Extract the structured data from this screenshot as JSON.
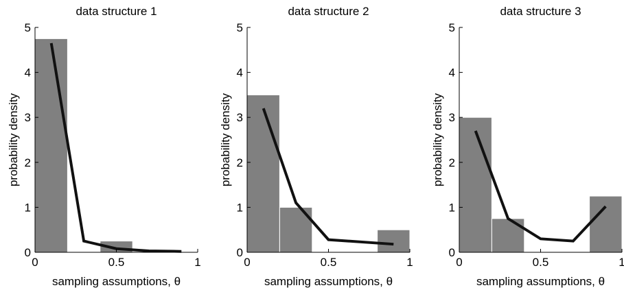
{
  "chart_data": [
    {
      "type": "bar",
      "title": "data structure 1",
      "xlabel": "sampling assumptions, θ",
      "ylabel": "probability density",
      "xlim": [
        0,
        1
      ],
      "ylim": [
        0,
        5
      ],
      "xticks": [
        "0",
        "0.5",
        "1"
      ],
      "yticks": [
        "0",
        "1",
        "2",
        "3",
        "4",
        "5"
      ],
      "bin_edges": [
        0,
        0.2,
        0.4,
        0.6,
        0.8,
        1.0
      ],
      "bar_values": [
        4.75,
        0,
        0.25,
        0,
        0
      ],
      "line": {
        "x": [
          0.1,
          0.3,
          0.5,
          0.7,
          0.9
        ],
        "y": [
          4.65,
          0.25,
          0.08,
          0.03,
          0.02
        ]
      },
      "colors": {
        "bar": "#808080",
        "line": "#111111"
      }
    },
    {
      "type": "bar",
      "title": "data structure 2",
      "xlabel": "sampling assumptions, θ",
      "ylabel": "probability density",
      "xlim": [
        0,
        1
      ],
      "ylim": [
        0,
        5
      ],
      "xticks": [
        "0",
        "0.5",
        "1"
      ],
      "yticks": [
        "0",
        "1",
        "2",
        "3",
        "4",
        "5"
      ],
      "bin_edges": [
        0,
        0.2,
        0.4,
        0.6,
        0.8,
        1.0
      ],
      "bar_values": [
        3.5,
        1.0,
        0,
        0,
        0.5
      ],
      "line": {
        "x": [
          0.1,
          0.3,
          0.5,
          0.9
        ],
        "y": [
          3.2,
          1.1,
          0.28,
          0.18
        ]
      },
      "colors": {
        "bar": "#808080",
        "line": "#111111"
      }
    },
    {
      "type": "bar",
      "title": "data structure 3",
      "xlabel": "sampling assumptions, θ",
      "ylabel": "probability density",
      "xlim": [
        0,
        1
      ],
      "ylim": [
        0,
        5
      ],
      "xticks": [
        "0",
        "0.5",
        "1"
      ],
      "yticks": [
        "0",
        "1",
        "2",
        "3",
        "4",
        "5"
      ],
      "bin_edges": [
        0,
        0.2,
        0.4,
        0.6,
        0.8,
        1.0
      ],
      "bar_values": [
        3.0,
        0.75,
        0,
        0,
        1.25
      ],
      "line": {
        "x": [
          0.1,
          0.3,
          0.5,
          0.7,
          0.9
        ],
        "y": [
          2.7,
          0.75,
          0.3,
          0.25,
          1.02
        ]
      },
      "colors": {
        "bar": "#808080",
        "line": "#111111"
      }
    }
  ]
}
